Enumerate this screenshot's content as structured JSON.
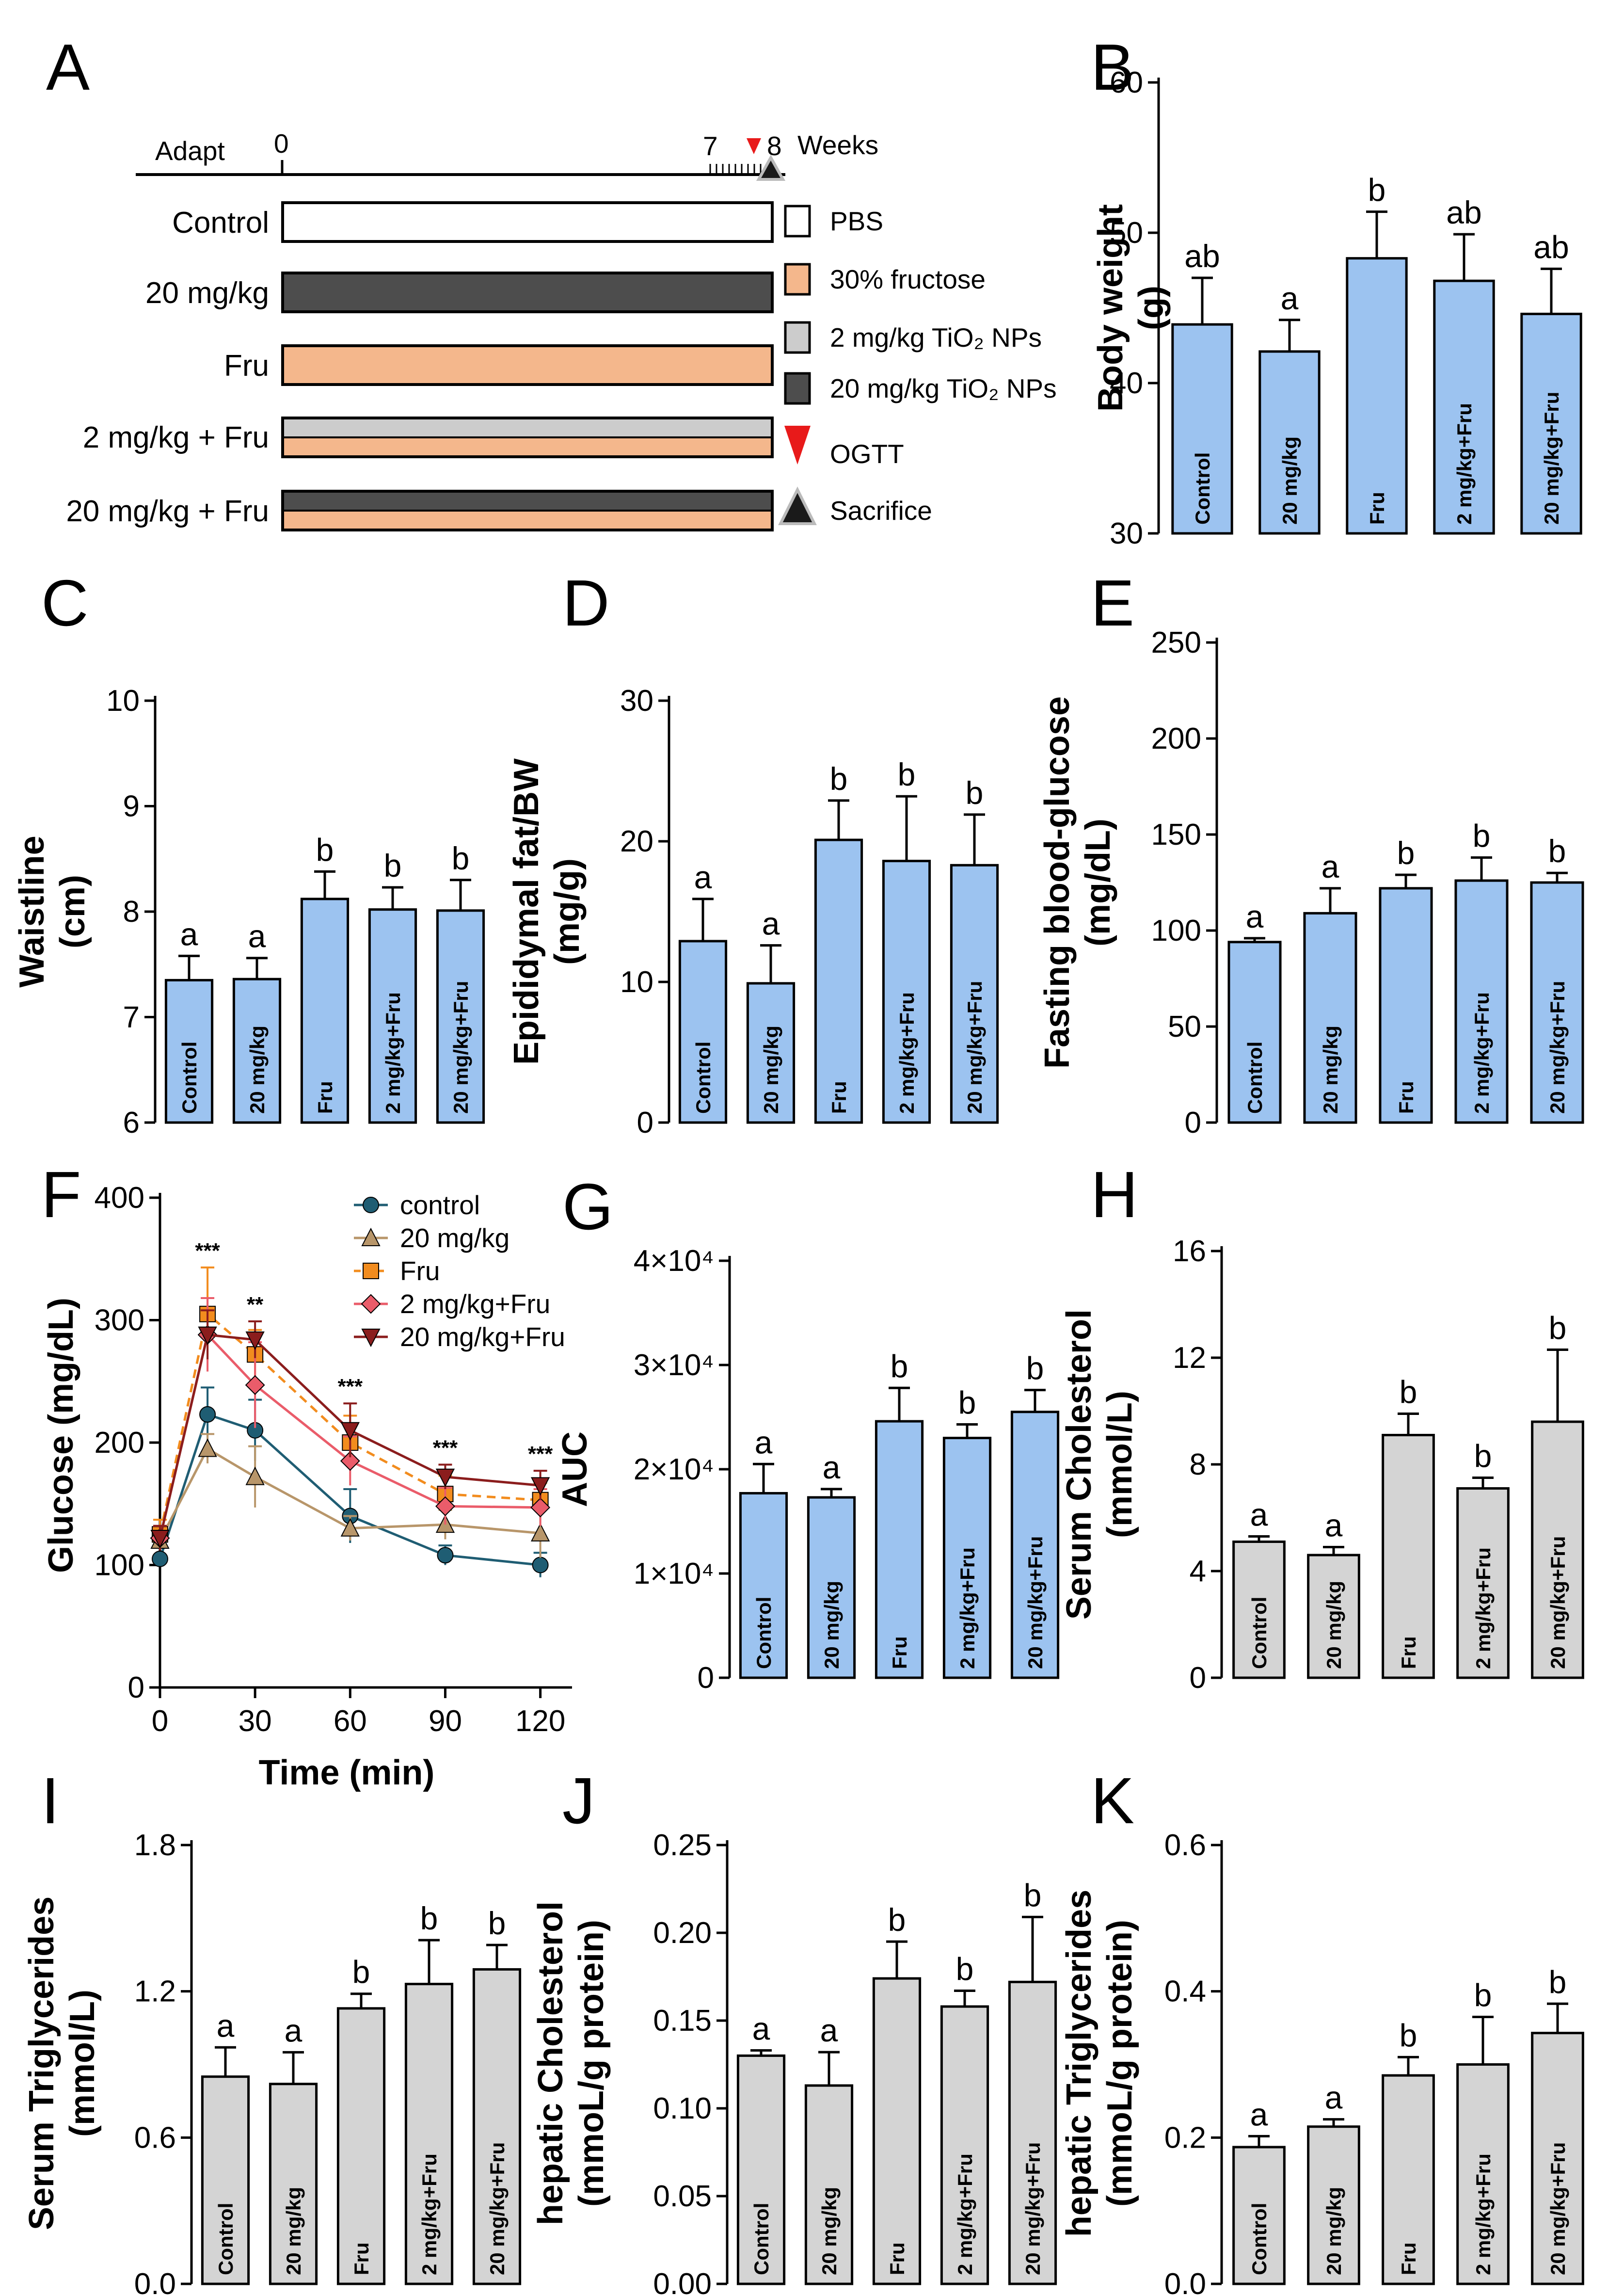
{
  "panel_a": {
    "label": "A",
    "axis_start": "Adapt",
    "tick_0": "0",
    "tick_7": "7",
    "tick_8": "8",
    "unit": "Weeks",
    "groups": [
      "Control",
      "20 mg/kg",
      "Fru",
      "2 mg/kg + Fru",
      "20 mg/kg + Fru"
    ],
    "legend": [
      "PBS",
      "30% fructose",
      "2 mg/kg TiO₂ NPs",
      "20 mg/kg TiO₂ NPs",
      "OGTT",
      "Sacrifice"
    ],
    "colors": {
      "pbs": "#ffffff",
      "fructose": "#f4b78c",
      "low_tio2": "#cccccc",
      "high_tio2": "#4d4d4d",
      "ogtt": "#e81a1a",
      "sacrifice": "#1a1a1a"
    }
  },
  "chart_data": [
    {
      "id": "B",
      "type": "bar",
      "title": "",
      "xlabel": "",
      "ylabel": "Body weight (g)",
      "categories": [
        "Control",
        "20 mg/kg",
        "Fru",
        "2 mg/kg+Fru",
        "20 mg/kg+Fru"
      ],
      "values": [
        43.9,
        42.1,
        48.3,
        46.8,
        44.6
      ],
      "errors": [
        3.1,
        2.1,
        3.1,
        3.1,
        3.0
      ],
      "letters": [
        "ab",
        "a",
        "b",
        "ab",
        "ab"
      ],
      "ylim": [
        30,
        60
      ],
      "yticks": [
        30,
        40,
        50,
        60
      ],
      "ytick_labels": [
        "30",
        "40",
        "50",
        "60"
      ],
      "bar_color": "#9cc3f0"
    },
    {
      "id": "C",
      "type": "bar",
      "title": "",
      "xlabel": "",
      "ylabel": "Waistline (cm)",
      "categories": [
        "Control",
        "20 mg/kg",
        "Fru",
        "2 mg/kg+Fru",
        "20 mg/kg+Fru"
      ],
      "values": [
        7.35,
        7.36,
        8.12,
        8.02,
        8.01
      ],
      "errors": [
        0.23,
        0.2,
        0.26,
        0.21,
        0.29
      ],
      "letters": [
        "a",
        "a",
        "b",
        "b",
        "b"
      ],
      "ylim": [
        6,
        10
      ],
      "yticks": [
        6,
        7,
        8,
        9,
        10
      ],
      "ytick_labels": [
        "6",
        "7",
        "8",
        "9",
        "10"
      ],
      "bar_color": "#9cc3f0"
    },
    {
      "id": "D",
      "type": "bar",
      "title": "",
      "xlabel": "",
      "ylabel": "Epididymal fat/BW (mg/g)",
      "categories": [
        "Control",
        "20 mg/kg",
        "Fru",
        "2 mg/kg+Fru",
        "20 mg/kg+Fru"
      ],
      "values": [
        12.9,
        9.9,
        20.1,
        18.6,
        18.3
      ],
      "errors": [
        3.0,
        2.7,
        2.8,
        4.6,
        3.6
      ],
      "letters": [
        "a",
        "a",
        "b",
        "b",
        "b"
      ],
      "ylim": [
        0,
        30
      ],
      "yticks": [
        0,
        10,
        20,
        30
      ],
      "ytick_labels": [
        "0",
        "10",
        "20",
        "30"
      ],
      "bar_color": "#9cc3f0"
    },
    {
      "id": "E",
      "type": "bar",
      "title": "",
      "xlabel": "",
      "ylabel": "Fasting blood-glucose (mg/dL)",
      "categories": [
        "Control",
        "20 mg/kg",
        "Fru",
        "2 mg/kg+Fru",
        "20 mg/kg+Fru"
      ],
      "values": [
        94,
        109,
        122,
        126,
        125
      ],
      "errors": [
        2,
        13,
        7,
        12,
        5
      ],
      "letters": [
        "a",
        "a",
        "b",
        "b",
        "b"
      ],
      "ylim": [
        0,
        250
      ],
      "yticks": [
        0,
        50,
        100,
        150,
        200,
        250
      ],
      "ytick_labels": [
        "0",
        "50",
        "100",
        "150",
        "200",
        "250"
      ],
      "bar_color": "#9cc3f0"
    },
    {
      "id": "F",
      "type": "line",
      "title": "",
      "xlabel": "Time (min)",
      "ylabel": "Glucose (mg/dL)",
      "x": [
        0,
        15,
        30,
        60,
        90,
        120
      ],
      "xlim": [
        0,
        130
      ],
      "ylim": [
        0,
        400
      ],
      "xticks": [
        0,
        30,
        60,
        90,
        120
      ],
      "yticks": [
        0,
        100,
        200,
        300,
        400
      ],
      "xtick_labels": [
        "0",
        "30",
        "60",
        "90",
        "120"
      ],
      "ytick_labels": [
        "0",
        "100",
        "200",
        "300",
        "400"
      ],
      "series": [
        {
          "name": "control",
          "values": [
            105,
            223,
            210,
            140,
            108,
            100
          ],
          "errors": [
            0,
            22,
            25,
            22,
            8,
            10
          ],
          "color": "#1f5d73",
          "marker": "circle",
          "dashed": false
        },
        {
          "name": "20 mg/kg",
          "values": [
            120,
            195,
            172,
            130,
            133,
            126
          ],
          "errors": [
            0,
            12,
            25,
            10,
            12,
            20
          ],
          "color": "#b8966a",
          "marker": "triangle",
          "dashed": false
        },
        {
          "name": "Fru",
          "values": [
            125,
            305,
            272,
            200,
            158,
            153
          ],
          "errors": [
            12,
            38,
            20,
            22,
            15,
            14
          ],
          "color": "#f28c1e",
          "marker": "square",
          "dashed": true
        },
        {
          "name": "2 mg/kg+Fru",
          "values": [
            122,
            288,
            247,
            185,
            148,
            147
          ],
          "errors": [
            10,
            30,
            35,
            20,
            15,
            15
          ],
          "color": "#ea5c6a",
          "marker": "diamond",
          "dashed": false
        },
        {
          "name": "20 mg/kg+Fru",
          "values": [
            122,
            288,
            284,
            210,
            172,
            165
          ],
          "errors": [
            10,
            20,
            15,
            22,
            10,
            12
          ],
          "color": "#8b1d1d",
          "marker": "triangle-down",
          "dashed": false
        }
      ],
      "annotations": [
        {
          "x": 15,
          "text": "***"
        },
        {
          "x": 30,
          "text": "**"
        },
        {
          "x": 60,
          "text": "***"
        },
        {
          "x": 90,
          "text": "***"
        },
        {
          "x": 120,
          "text": "***"
        }
      ]
    },
    {
      "id": "G",
      "type": "bar",
      "title": "",
      "xlabel": "",
      "ylabel": "AUC",
      "categories": [
        "Control",
        "20 mg/kg",
        "Fru",
        "2 mg/kg+Fru",
        "20 mg/kg+Fru"
      ],
      "values": [
        17700,
        17300,
        24600,
        23000,
        25500
      ],
      "errors": [
        2800,
        800,
        3200,
        1300,
        2100
      ],
      "letters": [
        "a",
        "a",
        "b",
        "b",
        "b"
      ],
      "ylim": [
        0,
        40000
      ],
      "yticks": [
        0,
        10000,
        20000,
        30000,
        40000
      ],
      "ytick_labels": [
        "0",
        "1×10⁴",
        "2×10⁴",
        "3×10⁴",
        "4×10⁴"
      ],
      "bar_color": "#9cc3f0"
    },
    {
      "id": "H",
      "type": "bar",
      "title": "",
      "xlabel": "",
      "ylabel": "Serum Cholesterol (mmol/L)",
      "categories": [
        "Control",
        "20 mg/kg",
        "Fru",
        "2 mg/kg+Fru",
        "20 mg/kg+Fru"
      ],
      "values": [
        5.1,
        4.6,
        9.1,
        7.1,
        9.6
      ],
      "errors": [
        0.2,
        0.3,
        0.8,
        0.4,
        2.7
      ],
      "letters": [
        "a",
        "a",
        "b",
        "b",
        "b"
      ],
      "ylim": [
        0,
        16
      ],
      "yticks": [
        0,
        4,
        8,
        12,
        16
      ],
      "ytick_labels": [
        "0",
        "4",
        "8",
        "12",
        "16"
      ],
      "bar_color": "#d4d4d4"
    },
    {
      "id": "I",
      "type": "bar",
      "title": "",
      "xlabel": "",
      "ylabel": "Serum Triglycerides (mmol/L)",
      "categories": [
        "Control",
        "20 mg/kg",
        "Fru",
        "2 mg/kg+Fru",
        "20 mg/kg+Fru"
      ],
      "values": [
        0.85,
        0.82,
        1.13,
        1.23,
        1.29
      ],
      "errors": [
        0.12,
        0.13,
        0.06,
        0.18,
        0.1
      ],
      "letters": [
        "a",
        "a",
        "b",
        "b",
        "b"
      ],
      "ylim": [
        0,
        1.8
      ],
      "yticks": [
        0,
        0.6,
        1.2,
        1.8
      ],
      "ytick_labels": [
        "0.0",
        "0.6",
        "1.2",
        "1.8"
      ],
      "bar_color": "#d4d4d4"
    },
    {
      "id": "J",
      "type": "bar",
      "title": "",
      "xlabel": "",
      "ylabel": "hepatic Cholesterol (mmoL/g protein)",
      "categories": [
        "Control",
        "20 mg/kg",
        "Fru",
        "2 mg/kg+Fru",
        "20 mg/kg+Fru"
      ],
      "values": [
        0.13,
        0.113,
        0.174,
        0.158,
        0.172
      ],
      "errors": [
        0.003,
        0.019,
        0.021,
        0.009,
        0.037
      ],
      "letters": [
        "a",
        "a",
        "b",
        "b",
        "b"
      ],
      "ylim": [
        0,
        0.25
      ],
      "yticks": [
        0,
        0.05,
        0.1,
        0.15,
        0.2,
        0.25
      ],
      "ytick_labels": [
        "0.00",
        "0.05",
        "0.10",
        "0.15",
        "0.20",
        "0.25"
      ],
      "bar_color": "#d4d4d4"
    },
    {
      "id": "K",
      "type": "bar",
      "title": "",
      "xlabel": "",
      "ylabel": "hepatic Triglycerides (mmoL/g protein)",
      "categories": [
        "Control",
        "20 mg/kg",
        "Fru",
        "2 mg/kg+Fru",
        "20 mg/kg+Fru"
      ],
      "values": [
        0.187,
        0.215,
        0.285,
        0.3,
        0.343
      ],
      "errors": [
        0.015,
        0.01,
        0.025,
        0.065,
        0.04
      ],
      "letters": [
        "a",
        "a",
        "b",
        "b",
        "b"
      ],
      "ylim": [
        0,
        0.6
      ],
      "yticks": [
        0,
        0.2,
        0.4,
        0.6
      ],
      "ytick_labels": [
        "0.0",
        "0.2",
        "0.4",
        "0.6"
      ],
      "bar_color": "#d4d4d4"
    }
  ]
}
